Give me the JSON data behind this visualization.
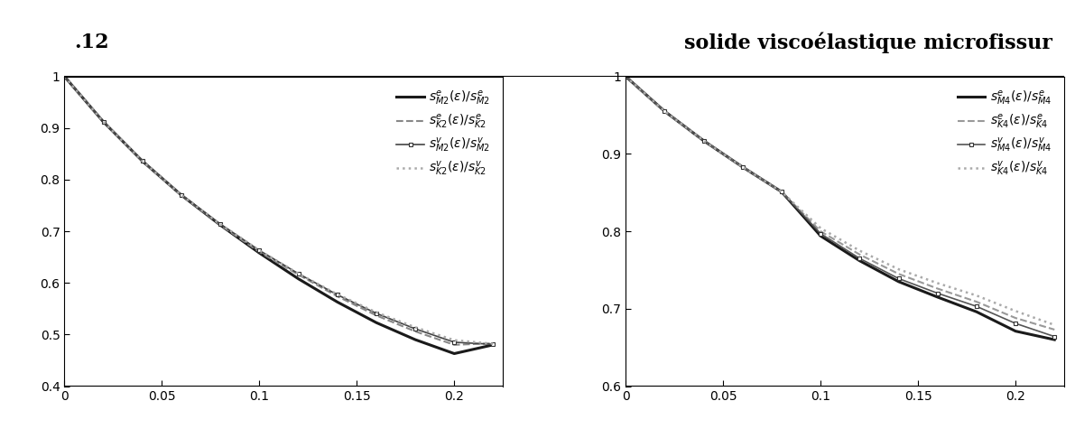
{
  "header_left": ".12",
  "header_right": "solide viscoélastique microfissur",
  "left": {
    "xlim": [
      0,
      0.225
    ],
    "ylim": [
      0.4,
      1.0
    ],
    "xticks": [
      0,
      0.05,
      0.1,
      0.15,
      0.2
    ],
    "yticks": [
      0.4,
      0.5,
      0.6,
      0.7,
      0.8,
      0.9,
      1.0
    ],
    "curves": [
      {
        "label": "$s^{e}_{M2}(\\epsilon)/s^{e}_{M2}$",
        "style": "solid",
        "color": "#1a1a1a",
        "linewidth": 2.2,
        "marker": null,
        "x": [
          0.0,
          0.02,
          0.04,
          0.06,
          0.08,
          0.1,
          0.12,
          0.14,
          0.16,
          0.18,
          0.2,
          0.22
        ],
        "y": [
          1.0,
          0.912,
          0.836,
          0.77,
          0.712,
          0.658,
          0.608,
          0.563,
          0.523,
          0.49,
          0.463,
          0.48
        ]
      },
      {
        "label": "$s^{e}_{K2}(\\epsilon)/s^{e}_{K2}$",
        "style": "dashed",
        "color": "#888888",
        "linewidth": 1.5,
        "marker": null,
        "x": [
          0.0,
          0.02,
          0.04,
          0.06,
          0.08,
          0.1,
          0.12,
          0.14,
          0.16,
          0.18,
          0.2,
          0.22
        ],
        "y": [
          1.0,
          0.912,
          0.836,
          0.77,
          0.712,
          0.66,
          0.616,
          0.574,
          0.537,
          0.506,
          0.48,
          0.483
        ]
      },
      {
        "label": "$s^{v}_{M2}(\\epsilon)/s^{v}_{M2}$",
        "style": "solid",
        "color": "#444444",
        "linewidth": 1.2,
        "marker": "s",
        "markersize": 3.5,
        "x": [
          0.0,
          0.02,
          0.04,
          0.06,
          0.08,
          0.1,
          0.12,
          0.14,
          0.16,
          0.18,
          0.2,
          0.22
        ],
        "y": [
          1.0,
          0.912,
          0.836,
          0.77,
          0.714,
          0.663,
          0.618,
          0.577,
          0.541,
          0.511,
          0.485,
          0.481
        ]
      },
      {
        "label": "$s^{v}_{K2}(\\epsilon)/s^{v}_{K2}$",
        "style": "dotted",
        "color": "#aaaaaa",
        "linewidth": 1.8,
        "marker": null,
        "x": [
          0.0,
          0.02,
          0.04,
          0.06,
          0.08,
          0.1,
          0.12,
          0.14,
          0.16,
          0.18,
          0.2,
          0.22
        ],
        "y": [
          1.0,
          0.912,
          0.836,
          0.77,
          0.714,
          0.663,
          0.618,
          0.578,
          0.543,
          0.514,
          0.489,
          0.482
        ]
      }
    ]
  },
  "right": {
    "xlim": [
      0,
      0.225
    ],
    "ylim": [
      0.6,
      1.0
    ],
    "xticks": [
      0,
      0.05,
      0.1,
      0.15,
      0.2
    ],
    "yticks": [
      0.6,
      0.7,
      0.8,
      0.9,
      1.0
    ],
    "curves": [
      {
        "label": "$s^{e}_{M4}(\\epsilon)/s^{e}_{M4}$",
        "style": "solid",
        "color": "#1a1a1a",
        "linewidth": 2.2,
        "marker": null,
        "x": [
          0.0,
          0.02,
          0.04,
          0.06,
          0.08,
          0.1,
          0.12,
          0.14,
          0.16,
          0.18,
          0.2,
          0.22
        ],
        "y": [
          1.0,
          0.955,
          0.917,
          0.883,
          0.851,
          0.794,
          0.762,
          0.735,
          0.715,
          0.696,
          0.671,
          0.66
        ]
      },
      {
        "label": "$s^{e}_{K4}(\\epsilon)/s^{e}_{K4}$",
        "style": "dashed",
        "color": "#999999",
        "linewidth": 1.5,
        "marker": null,
        "x": [
          0.0,
          0.02,
          0.04,
          0.06,
          0.08,
          0.1,
          0.12,
          0.14,
          0.16,
          0.18,
          0.2,
          0.22
        ],
        "y": [
          1.0,
          0.955,
          0.917,
          0.883,
          0.851,
          0.8,
          0.77,
          0.745,
          0.726,
          0.709,
          0.688,
          0.673
        ]
      },
      {
        "label": "$s^{v}_{M4}(\\epsilon)/s^{v}_{M4}$",
        "style": "solid",
        "color": "#555555",
        "linewidth": 1.2,
        "marker": "s",
        "markersize": 3.5,
        "x": [
          0.0,
          0.02,
          0.04,
          0.06,
          0.08,
          0.1,
          0.12,
          0.14,
          0.16,
          0.18,
          0.2,
          0.22
        ],
        "y": [
          1.0,
          0.955,
          0.917,
          0.883,
          0.851,
          0.797,
          0.765,
          0.739,
          0.72,
          0.703,
          0.681,
          0.664
        ]
      },
      {
        "label": "$s^{v}_{K4}(\\epsilon)/s^{v}_{K4}$",
        "style": "dotted",
        "color": "#aaaaaa",
        "linewidth": 1.8,
        "marker": null,
        "x": [
          0.0,
          0.02,
          0.04,
          0.06,
          0.08,
          0.1,
          0.12,
          0.14,
          0.16,
          0.18,
          0.2,
          0.22
        ],
        "y": [
          1.0,
          0.955,
          0.917,
          0.883,
          0.851,
          0.804,
          0.775,
          0.751,
          0.733,
          0.717,
          0.697,
          0.679
        ]
      }
    ]
  },
  "background_color": "#ffffff",
  "figsize": [
    11.91,
    4.75
  ]
}
